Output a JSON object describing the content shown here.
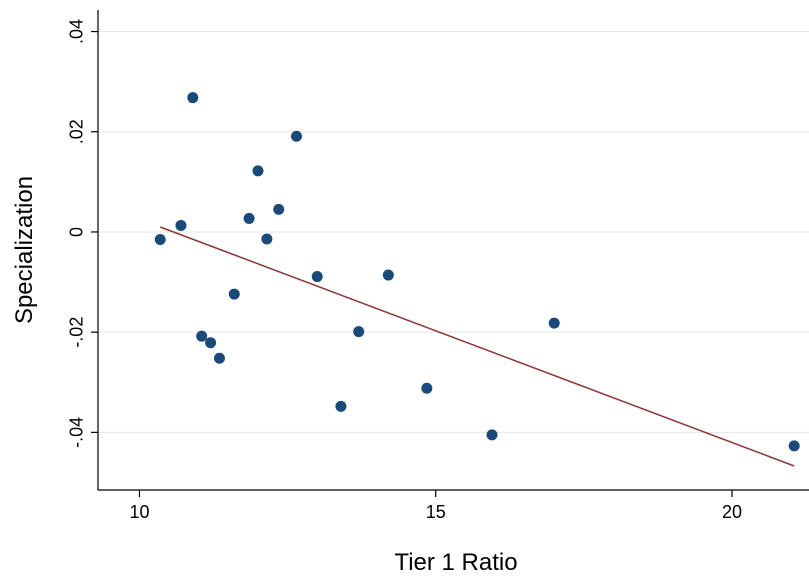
{
  "chart_data": {
    "type": "scatter",
    "xlabel": "Tier 1 Ratio",
    "ylabel": "Specialization",
    "xlim": [
      9.3,
      21.3
    ],
    "ylim": [
      -0.0515,
      0.0443
    ],
    "x_ticks": [
      10,
      15,
      20
    ],
    "x_tick_labels": [
      "10",
      "15",
      "20"
    ],
    "y_ticks": [
      -0.04,
      -0.02,
      0,
      0.02,
      0.04
    ],
    "y_tick_labels": [
      "-.04",
      "-.02",
      "0",
      ".02",
      ".04"
    ],
    "grid": true,
    "legend": "none",
    "points": [
      {
        "x": 10.35,
        "y": -0.0015
      },
      {
        "x": 10.7,
        "y": 0.0013
      },
      {
        "x": 10.9,
        "y": 0.0268
      },
      {
        "x": 11.05,
        "y": -0.0208
      },
      {
        "x": 11.2,
        "y": -0.0221
      },
      {
        "x": 11.35,
        "y": -0.0252
      },
      {
        "x": 11.6,
        "y": -0.0124
      },
      {
        "x": 11.85,
        "y": 0.0027
      },
      {
        "x": 12.0,
        "y": 0.0122
      },
      {
        "x": 12.15,
        "y": -0.0014
      },
      {
        "x": 12.35,
        "y": 0.0045
      },
      {
        "x": 12.65,
        "y": 0.0191
      },
      {
        "x": 13.0,
        "y": -0.0089
      },
      {
        "x": 13.4,
        "y": -0.0348
      },
      {
        "x": 13.7,
        "y": -0.0199
      },
      {
        "x": 14.2,
        "y": -0.0086
      },
      {
        "x": 14.85,
        "y": -0.0312
      },
      {
        "x": 15.95,
        "y": -0.0405
      },
      {
        "x": 17.0,
        "y": -0.0182
      },
      {
        "x": 21.05,
        "y": -0.0427
      }
    ],
    "fit_line": {
      "x": [
        10.35,
        21.05
      ],
      "y": [
        0.001,
        -0.0467
      ]
    },
    "colors": {
      "marker": "#1a4a7a",
      "fit_line": "#8b3a3a",
      "grid": "#e6e6e6",
      "axis": "#000000"
    }
  }
}
